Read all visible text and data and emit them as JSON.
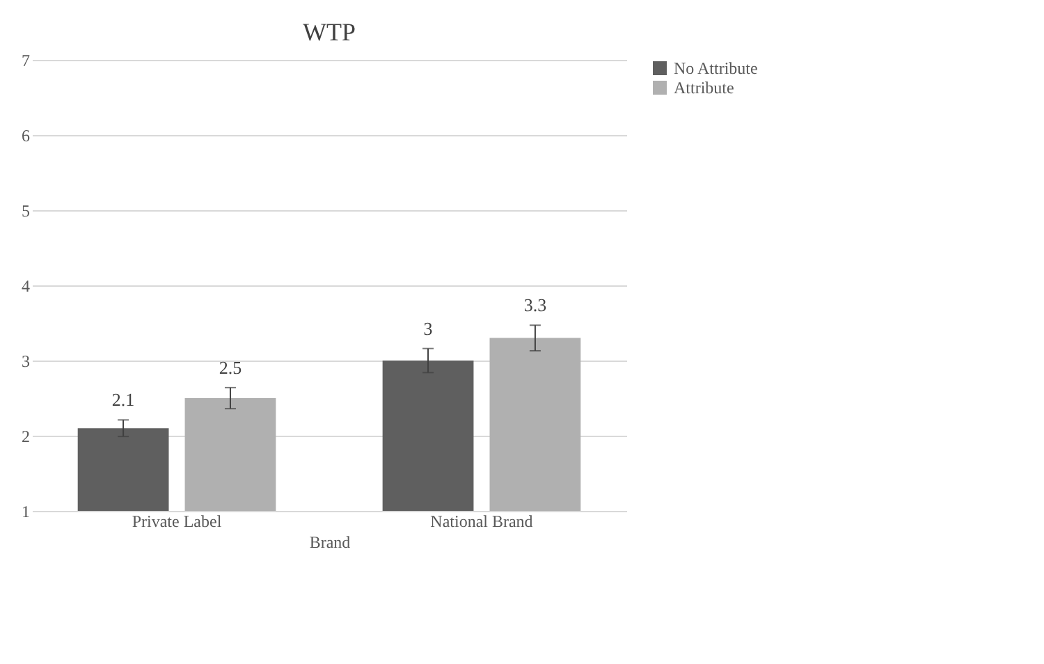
{
  "chart_data": {
    "type": "bar",
    "title": "WTP",
    "xlabel": "Brand",
    "categories": [
      "Private Label",
      "National Brand"
    ],
    "series": [
      {
        "name": "No Attribute",
        "color": "#5f5f5f",
        "values": [
          2.1,
          3
        ],
        "errors": [
          0.11,
          0.16
        ]
      },
      {
        "name": "Attribute",
        "color": "#b0b0b0",
        "values": [
          2.5,
          3.3
        ],
        "errors": [
          0.14,
          0.17
        ]
      }
    ],
    "ylim": [
      1,
      7
    ],
    "yticks": [
      1,
      2,
      3,
      4,
      5,
      6,
      7
    ],
    "grid": "y",
    "legend": "right",
    "data_labels": true
  }
}
